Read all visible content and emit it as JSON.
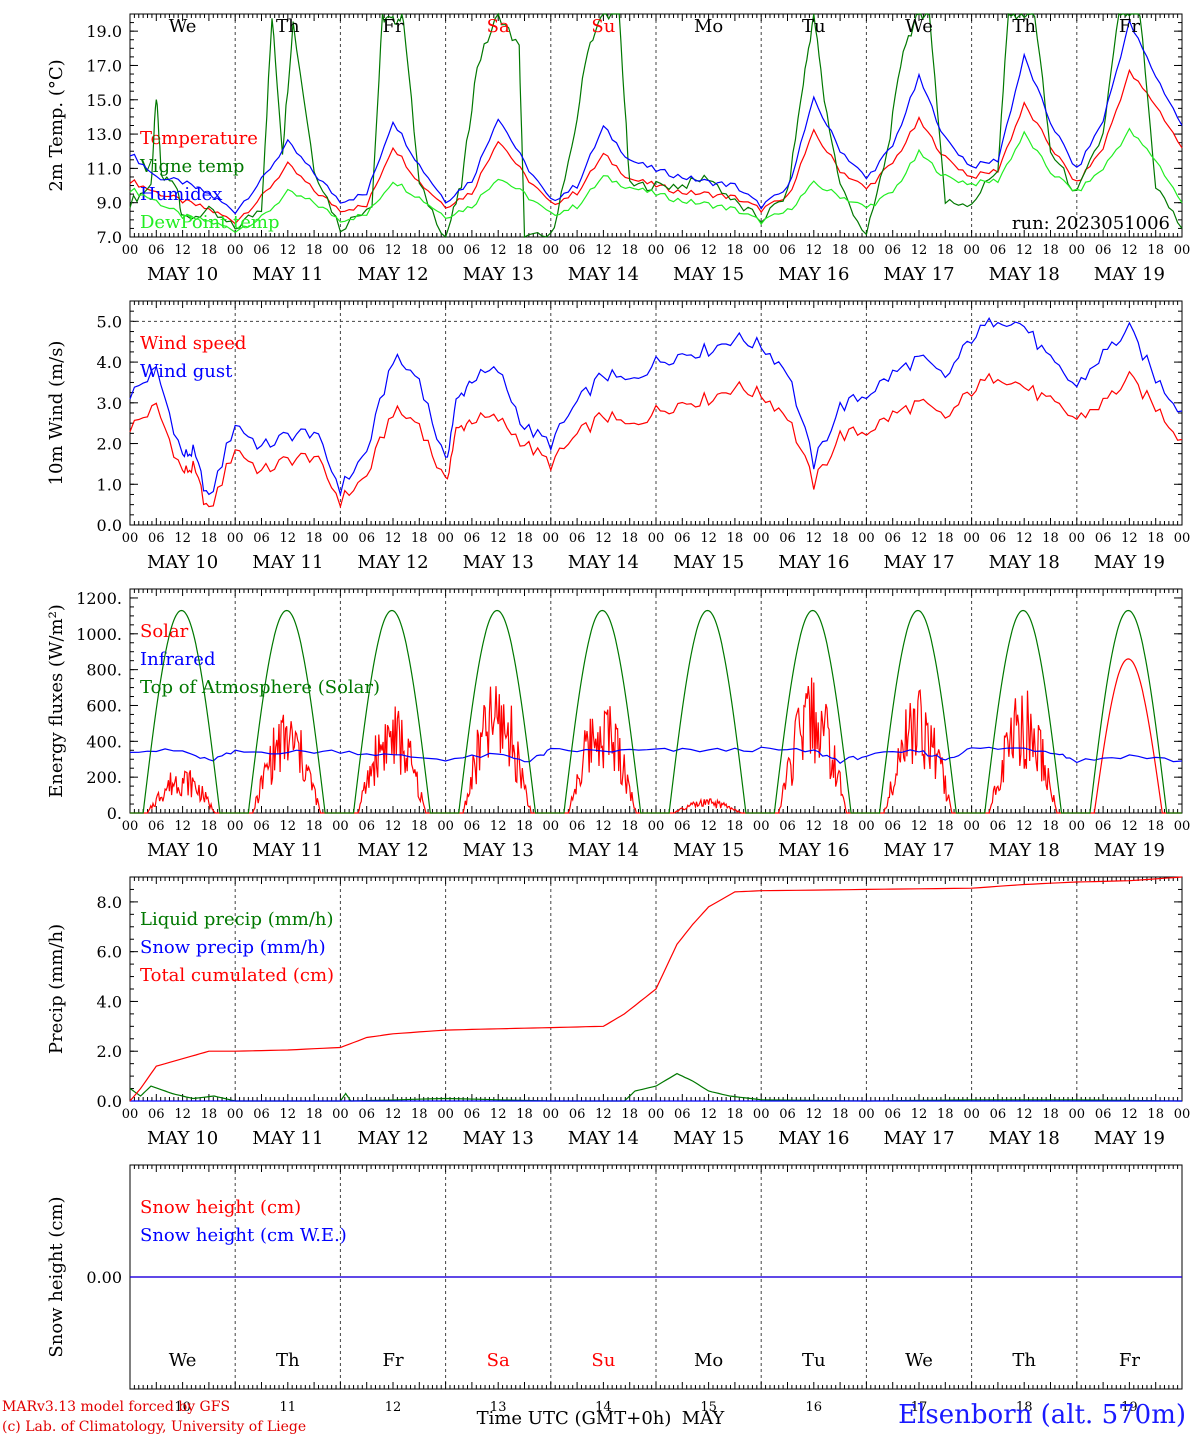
{
  "meta": {
    "credit_line1": "MARv3.13 model forced by GFS",
    "credit_line2": "(c) Lab. of Climatology, University of Liege",
    "station": "Elsenborn (alt. 570m)",
    "run_label": "run: 2023051006",
    "time_axis_label": "Time UTC (GMT+0h)",
    "month_label": "MAY",
    "hour_ticks": [
      "00",
      "06",
      "12",
      "18"
    ],
    "date_labels": [
      "MAY 10",
      "MAY 11",
      "MAY 12",
      "MAY 13",
      "MAY 14",
      "MAY 15",
      "MAY 16",
      "MAY 17",
      "MAY 18",
      "MAY 19"
    ],
    "day_numbers": [
      "10",
      "11",
      "12",
      "13",
      "14",
      "15",
      "16",
      "17",
      "18",
      "19"
    ],
    "weekdays": [
      "We",
      "Th",
      "Fr",
      "Sa",
      "Su",
      "Mo",
      "Tu",
      "We",
      "Th",
      "Fr"
    ],
    "weekend_color": "#ff0000",
    "weekday_color": "#000000"
  },
  "chart_data": [
    {
      "id": "temperature",
      "type": "line",
      "ylabel": "2m Temp. (°C)",
      "ylim": [
        7,
        20
      ],
      "yticks": [
        7,
        9,
        11,
        13,
        15,
        17,
        19
      ],
      "ytick_labels": [
        "7.0",
        "9.0",
        "11.0",
        "13.0",
        "15.0",
        "17.0",
        "19.0"
      ],
      "x_days": [
        0,
        10
      ],
      "series": [
        {
          "name": "Temperature",
          "color": "#ff0000",
          "x": [
            0,
            0.25,
            0.5,
            0.75,
            1,
            1.25,
            1.5,
            1.75,
            2,
            2.25,
            2.5,
            2.75,
            3,
            3.25,
            3.5,
            3.75,
            4,
            4.25,
            4.5,
            4.75,
            5,
            5.25,
            5.5,
            5.75,
            6,
            6.25,
            6.5,
            6.75,
            7,
            7.25,
            7.5,
            7.75,
            8,
            8.25,
            8.5,
            8.75,
            9,
            9.25,
            9.5,
            9.75,
            10
          ],
          "y": [
            10.3,
            9.6,
            9.1,
            8.6,
            7.9,
            9.3,
            11.2,
            9.7,
            8.6,
            8.8,
            12.3,
            10.2,
            8.8,
            9.6,
            12.7,
            10.6,
            8.9,
            9.6,
            11.8,
            10.4,
            10.0,
            9.6,
            9.5,
            9.3,
            8.6,
            9.3,
            13.1,
            10.9,
            9.8,
            11.3,
            13.8,
            11.6,
            10.5,
            10.9,
            14.7,
            12.3,
            10.1,
            12.2,
            16.6,
            14.7,
            12.2
          ]
        },
        {
          "name": "Vigne temp",
          "color": "#007800",
          "x": [
            0,
            0.2,
            0.25,
            0.3,
            0.45,
            0.5,
            0.75,
            1,
            1.25,
            1.35,
            1.45,
            1.55,
            1.75,
            2,
            2.3,
            2.4,
            2.5,
            2.6,
            2.75,
            3,
            3.15,
            3.3,
            3.5,
            3.7,
            3.75,
            4,
            4.2,
            4.35,
            4.5,
            4.65,
            4.75,
            5,
            5.25,
            5.5,
            5.75,
            6,
            6.25,
            6.4,
            6.5,
            6.6,
            6.75,
            7,
            7.2,
            7.35,
            7.5,
            7.6,
            7.75,
            8,
            8.25,
            8.35,
            8.5,
            8.6,
            8.75,
            9,
            9.25,
            9.4,
            9.5,
            9.6,
            9.75,
            10
          ],
          "y": [
            9.0,
            10.0,
            15.2,
            10.5,
            10.0,
            8.0,
            8.5,
            7.5,
            8.7,
            19.8,
            12.0,
            19.5,
            11.0,
            7.5,
            9.0,
            19.8,
            19.6,
            19.8,
            10.0,
            7.0,
            10.0,
            17.0,
            20.0,
            18.0,
            7.0,
            7.0,
            12.0,
            18.0,
            20.0,
            20.0,
            10.0,
            10.0,
            10.0,
            10.5,
            9.0,
            8.0,
            9.5,
            16.0,
            20.0,
            15.0,
            10.0,
            7.0,
            12.0,
            18.0,
            20.0,
            20.0,
            9.0,
            9.0,
            11.0,
            20.0,
            20.0,
            20.0,
            12.0,
            9.5,
            13.0,
            20.0,
            20.0,
            20.0,
            10.0,
            7.5
          ]
        },
        {
          "name": "Humidex",
          "color": "#0000ff",
          "x": [
            0,
            0.25,
            0.5,
            0.75,
            1,
            1.25,
            1.5,
            1.75,
            2,
            2.25,
            2.5,
            2.75,
            3,
            3.25,
            3.5,
            3.75,
            4,
            4.25,
            4.5,
            4.75,
            5,
            5.25,
            5.5,
            5.75,
            6,
            6.25,
            6.5,
            6.75,
            7,
            7.25,
            7.5,
            7.75,
            8,
            8.25,
            8.5,
            8.75,
            9,
            9.25,
            9.5,
            9.75,
            10
          ],
          "y": [
            11.9,
            10.5,
            10.2,
            9.5,
            8.5,
            10.3,
            12.5,
            10.7,
            9.1,
            9.5,
            13.8,
            11.2,
            9.1,
            10.3,
            14.0,
            11.3,
            9.1,
            10.0,
            13.4,
            11.5,
            10.9,
            10.5,
            10.2,
            10.0,
            8.8,
            9.8,
            15.0,
            12.1,
            10.4,
            12.3,
            16.3,
            12.7,
            11.1,
            11.5,
            17.5,
            13.7,
            10.9,
            13.8,
            19.5,
            16.4,
            13.5
          ]
        },
        {
          "name": "DewPoint temp",
          "color": "#22ee22",
          "x": [
            0,
            0.25,
            0.5,
            0.75,
            1,
            1.25,
            1.5,
            1.75,
            2,
            2.25,
            2.5,
            2.75,
            3,
            3.25,
            3.5,
            3.75,
            4,
            4.25,
            4.5,
            4.75,
            5,
            5.25,
            5.5,
            5.75,
            6,
            6.25,
            6.5,
            6.75,
            7,
            7.25,
            7.5,
            7.75,
            8,
            8.25,
            8.5,
            8.75,
            9,
            9.25,
            9.5,
            9.75,
            10
          ],
          "y": [
            9.8,
            9.1,
            8.2,
            7.9,
            7.4,
            8.1,
            9.6,
            9.0,
            8.0,
            8.3,
            10.3,
            9.3,
            8.2,
            8.8,
            10.5,
            9.5,
            8.3,
            8.8,
            10.5,
            9.9,
            9.5,
            9.1,
            8.9,
            8.6,
            7.9,
            8.5,
            10.1,
            9.4,
            8.7,
            9.6,
            11.9,
            10.5,
            10.1,
            10.3,
            13.0,
            10.8,
            9.6,
            11.0,
            13.2,
            11.5,
            9.0
          ]
        }
      ]
    },
    {
      "id": "wind",
      "type": "line",
      "ylabel": "10m Wind (m/s)",
      "ylim": [
        0,
        5.5
      ],
      "yticks": [
        0,
        1,
        2,
        3,
        4,
        5
      ],
      "ytick_labels": [
        "0.0",
        "1.0",
        "2.0",
        "3.0",
        "4.0",
        "5.0"
      ],
      "dashed_ref": 5.0,
      "series": [
        {
          "name": "Wind speed",
          "color": "#ff0000",
          "x": [
            0,
            0.25,
            0.5,
            0.6,
            0.75,
            1,
            1.25,
            1.5,
            1.75,
            2,
            2.25,
            2.5,
            2.75,
            3,
            3.1,
            3.25,
            3.5,
            3.75,
            4,
            4.25,
            4.5,
            4.75,
            5,
            5.25,
            5.5,
            5.75,
            6,
            6.25,
            6.5,
            6.75,
            7,
            7.25,
            7.5,
            7.75,
            8,
            8.25,
            8.5,
            8.75,
            9,
            9.25,
            9.5,
            9.75,
            10
          ],
          "y": [
            2.4,
            2.9,
            1.3,
            1.4,
            0.3,
            1.9,
            1.3,
            1.6,
            1.7,
            0.6,
            1.2,
            2.8,
            2.5,
            1.0,
            2.3,
            2.6,
            2.6,
            2.0,
            1.5,
            2.2,
            2.7,
            2.4,
            2.8,
            3.0,
            3.1,
            3.4,
            3.2,
            2.7,
            1.0,
            2.2,
            2.3,
            2.7,
            3.0,
            2.6,
            3.3,
            3.7,
            3.4,
            3.0,
            2.6,
            3.0,
            3.6,
            2.9,
            2.1
          ]
        },
        {
          "name": "Wind gust",
          "color": "#0000ff",
          "x": [
            0,
            0.25,
            0.5,
            0.6,
            0.75,
            1,
            1.25,
            1.5,
            1.75,
            2,
            2.25,
            2.5,
            2.75,
            3,
            3.1,
            3.25,
            3.5,
            3.75,
            4,
            4.25,
            4.5,
            4.75,
            5,
            5.25,
            5.5,
            5.75,
            6,
            6.25,
            6.5,
            6.75,
            7,
            7.25,
            7.5,
            7.75,
            8,
            8.25,
            8.5,
            8.75,
            9,
            9.25,
            9.5,
            9.75,
            10
          ],
          "y": [
            3.2,
            3.8,
            1.7,
            1.8,
            0.6,
            2.5,
            1.9,
            2.2,
            2.3,
            0.9,
            1.8,
            4.1,
            3.6,
            1.5,
            3.0,
            3.6,
            3.8,
            2.4,
            2.0,
            3.0,
            3.7,
            3.5,
            4.0,
            4.2,
            4.3,
            4.6,
            4.4,
            3.8,
            1.5,
            2.9,
            3.2,
            3.7,
            4.1,
            3.6,
            4.6,
            5.1,
            4.9,
            4.0,
            3.4,
            4.2,
            4.8,
            3.6,
            2.8
          ]
        }
      ]
    },
    {
      "id": "energy",
      "type": "line",
      "ylabel": "Energy fluxes (W/m²)",
      "ylim": [
        0,
        1250
      ],
      "yticks": [
        0,
        200,
        400,
        600,
        800,
        1000,
        1200
      ],
      "ytick_labels": [
        "0.",
        "200.",
        "400.",
        "600.",
        "800.",
        "1000.",
        "1200."
      ],
      "series": [
        {
          "name": "Solar",
          "color": "#ff0000",
          "daily_peak": [
            270,
            590,
            620,
            760,
            680,
            80,
            760,
            720,
            700,
            860
          ]
        },
        {
          "name": "Infrared",
          "color": "#0000ff",
          "x": [
            0,
            0.5,
            0.75,
            1,
            1.5,
            2,
            2.5,
            3,
            3.5,
            3.8,
            4,
            4.5,
            5,
            5.5,
            6,
            6.5,
            6.75,
            7,
            7.5,
            7.75,
            8,
            8.5,
            8.8,
            9,
            9.5,
            10
          ],
          "y": [
            350,
            345,
            290,
            340,
            340,
            345,
            320,
            300,
            325,
            290,
            350,
            345,
            350,
            350,
            355,
            345,
            290,
            320,
            345,
            300,
            360,
            360,
            340,
            290,
            320,
            290
          ]
        },
        {
          "name": "Top of Atmosphere (Solar)",
          "color": "#007800",
          "daily_peak": 1130,
          "sunrise_h": 3.0,
          "sunset_h": 20.5
        }
      ]
    },
    {
      "id": "precip",
      "type": "line",
      "ylabel": "Precip (mm/h)",
      "ylim": [
        0,
        9
      ],
      "yticks": [
        0,
        2,
        4,
        6,
        8
      ],
      "ytick_labels": [
        "0.0",
        "2.0",
        "4.0",
        "6.0",
        "8.0"
      ],
      "series": [
        {
          "name": "Liquid precip (mm/h)",
          "color": "#007800",
          "x": [
            0,
            0.1,
            0.2,
            0.4,
            0.6,
            0.8,
            1,
            2,
            2.05,
            2.1,
            3,
            4,
            4.7,
            4.8,
            5,
            5.2,
            5.35,
            5.5,
            5.7,
            6,
            7,
            8,
            9,
            10
          ],
          "y": [
            0.5,
            0.2,
            0.6,
            0.3,
            0.1,
            0.2,
            0,
            0,
            0.3,
            0,
            0.1,
            0,
            0,
            0.4,
            0.6,
            1.1,
            0.8,
            0.4,
            0.2,
            0.05,
            0,
            0.05,
            0.05,
            0
          ]
        },
        {
          "name": "Snow precip (mm/h)",
          "color": "#0000ff",
          "x": [
            0,
            10
          ],
          "y": [
            0,
            0
          ]
        },
        {
          "name": "Total cumulated (cm)",
          "color": "#ff0000",
          "x": [
            0,
            0.1,
            0.25,
            0.5,
            0.75,
            1,
            1.5,
            2,
            2.25,
            2.5,
            3,
            3.5,
            4,
            4.5,
            4.7,
            5,
            5.2,
            5.35,
            5.5,
            5.75,
            6,
            7,
            8,
            8.5,
            9,
            9.5,
            10
          ],
          "y": [
            0,
            0.5,
            1.4,
            1.7,
            2.0,
            2.0,
            2.05,
            2.15,
            2.55,
            2.7,
            2.85,
            2.9,
            2.95,
            3.0,
            3.5,
            4.5,
            6.3,
            7.1,
            7.8,
            8.4,
            8.45,
            8.5,
            8.55,
            8.7,
            8.8,
            8.85,
            9.0
          ]
        }
      ]
    },
    {
      "id": "snow",
      "type": "line",
      "ylabel": "Snow height (cm)",
      "ylim": [
        -1,
        1
      ],
      "yticks": [
        0
      ],
      "ytick_labels": [
        "0.00"
      ],
      "series": [
        {
          "name": "Snow height (cm)",
          "color": "#ff0000",
          "x": [
            0,
            10
          ],
          "y": [
            0,
            0
          ]
        },
        {
          "name": "Snow height (cm W.E.)",
          "color": "#0000ff",
          "x": [
            0,
            10
          ],
          "y": [
            0,
            0
          ]
        }
      ]
    }
  ]
}
